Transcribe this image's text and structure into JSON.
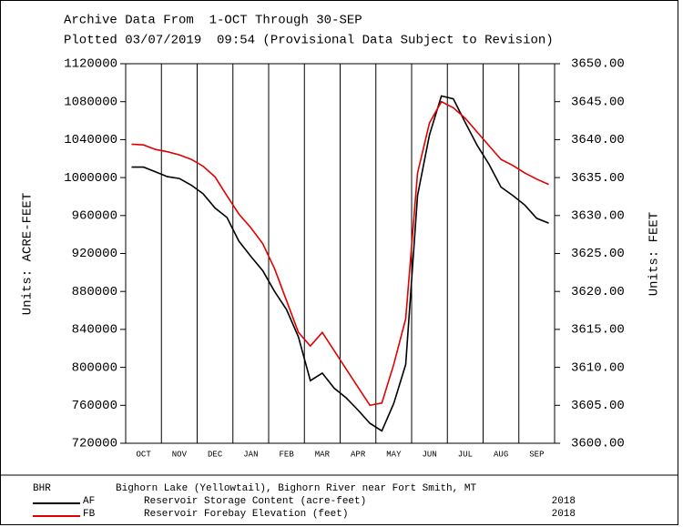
{
  "chart_data": {
    "type": "line",
    "title": "Archive Data From  1-OCT Through 30-SEP",
    "subtitle": "Plotted 03/07/2019  09:54 (Provisional Data Subject to Revision)",
    "ylabel": "Units: ACRE-FEET",
    "y2label": "Units: FEET",
    "station": "BHR",
    "station_name": "Bighorn Lake (Yellowtail), Bighorn River near Fort Smith, MT",
    "categories": [
      null,
      "OCT",
      null,
      null,
      "NOV",
      null,
      null,
      "DEC",
      null,
      null,
      "JAN",
      null,
      null,
      "FEB",
      null,
      null,
      "MAR",
      null,
      null,
      "APR",
      null,
      null,
      "MAY",
      null,
      null,
      "JUN",
      null,
      null,
      "JUL",
      null,
      null,
      "AUG",
      null,
      null,
      "SEP",
      null
    ],
    "ylim": [
      720000,
      1120000
    ],
    "yticks": [
      720000,
      760000,
      800000,
      840000,
      880000,
      920000,
      960000,
      1000000,
      1040000,
      1080000,
      1120000
    ],
    "y2lim": [
      3600,
      3650
    ],
    "y2ticks": [
      {
        "value": 3600,
        "label": "3600.00"
      },
      {
        "value": 3605,
        "label": "3605.00"
      },
      {
        "value": 3610,
        "label": "3610.00"
      },
      {
        "value": 3615,
        "label": "3615.00"
      },
      {
        "value": 3620,
        "label": "3620.00"
      },
      {
        "value": 3625,
        "label": "3625.00"
      },
      {
        "value": 3630,
        "label": "3630.00"
      },
      {
        "value": 3635,
        "label": "3635.00"
      },
      {
        "value": 3640,
        "label": "3640.00"
      },
      {
        "value": 3645,
        "label": "3645.00"
      },
      {
        "value": 3650,
        "label": "3650.00"
      }
    ],
    "series": [
      {
        "code": "AF",
        "name": "Reservoir Storage Content (acre-feet)",
        "year": "2018",
        "color": "#000000",
        "axis": "y",
        "values": [
          1011000,
          1011000,
          1006000,
          1001000,
          999000,
          992000,
          983000,
          968000,
          958000,
          933000,
          917000,
          902000,
          880000,
          861000,
          832000,
          786000,
          794000,
          778000,
          768000,
          755000,
          741000,
          733000,
          762000,
          803000,
          981000,
          1045000,
          1086000,
          1083000,
          1058000,
          1034000,
          1014000,
          990000,
          981000,
          971000,
          957000,
          952000
        ]
      },
      {
        "code": "FB",
        "name": "Reservoir Forebay Elevation (feet)",
        "year": "2018",
        "color": "#e00000",
        "axis": "y2",
        "values": [
          3639.4,
          3639.3,
          3638.7,
          3638.4,
          3638.0,
          3637.4,
          3636.5,
          3635.1,
          3632.6,
          3630.2,
          3628.4,
          3626.3,
          3623.0,
          3618.8,
          3614.6,
          3612.8,
          3614.6,
          3612.2,
          3609.8,
          3607.4,
          3605.0,
          3605.3,
          3610.4,
          3616.4,
          3635.6,
          3642.2,
          3645.0,
          3644.2,
          3642.8,
          3641.0,
          3639.2,
          3637.4,
          3636.6,
          3635.6,
          3634.8,
          3634.1
        ]
      }
    ]
  }
}
